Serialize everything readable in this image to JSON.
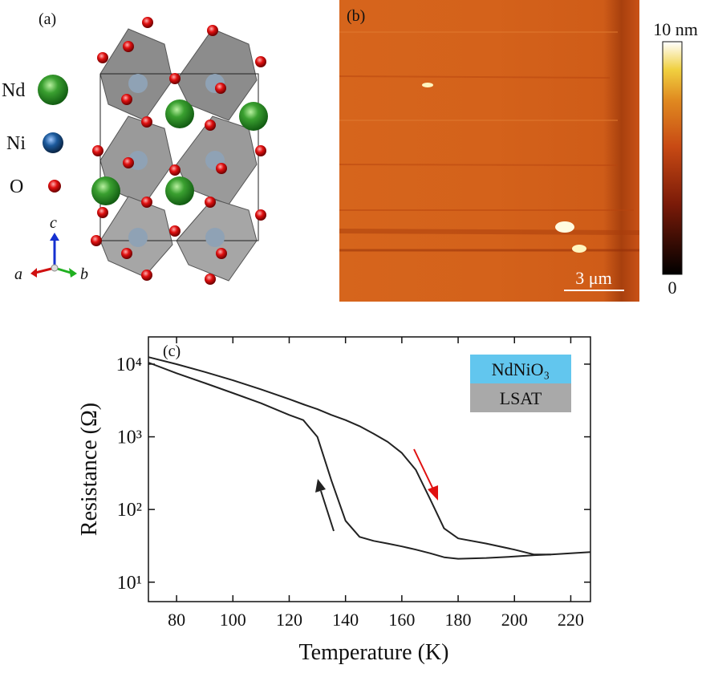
{
  "panel_a": {
    "label": "(a)",
    "legend": [
      "Nd",
      "Ni",
      "O"
    ],
    "axes": {
      "a": "a",
      "b": "b",
      "c": "c"
    }
  },
  "panel_b": {
    "label": "(b)",
    "colorbar_max": "10 nm",
    "colorbar_min": "0",
    "scale_bar": "3 μm"
  },
  "chart_data": {
    "type": "line",
    "panel_label": "(c)",
    "xlabel": "Temperature (K)",
    "ylabel": "Resistance (Ω)",
    "legend_layers": [
      "NdNiO₃",
      "LSAT"
    ],
    "log_y": true,
    "x": [
      70,
      80,
      90,
      100,
      110,
      120,
      125,
      130,
      135,
      140,
      145,
      150,
      155,
      160,
      165,
      170,
      175,
      180,
      190,
      200,
      207,
      213,
      220,
      227
    ],
    "series": [
      {
        "color": "#222222",
        "values": [
          12500,
          10000,
          7800,
          6000,
          4500,
          3300,
          2800,
          2400,
          2000,
          1700,
          1400,
          1100,
          850,
          600,
          350,
          140,
          55,
          40,
          34,
          28,
          24,
          24,
          null,
          null
        ]
      },
      {
        "color": "#222222",
        "values": [
          10500,
          7500,
          5500,
          4000,
          2900,
          2000,
          1700,
          1000,
          250,
          70,
          42,
          37,
          34,
          31,
          28,
          25,
          22,
          21,
          21.5,
          22.5,
          23.5,
          24,
          25,
          26
        ]
      }
    ],
    "xlim": [
      70,
      227
    ],
    "ylim": [
      5.4,
      23700
    ],
    "xticks": [
      80,
      100,
      120,
      140,
      160,
      180,
      200,
      220
    ],
    "yticks": [
      {
        "value": 10,
        "label": "10¹"
      },
      {
        "value": 100,
        "label": "10²"
      },
      {
        "value": 1000,
        "label": "10³"
      },
      {
        "value": 10000,
        "label": "10⁴"
      }
    ]
  }
}
